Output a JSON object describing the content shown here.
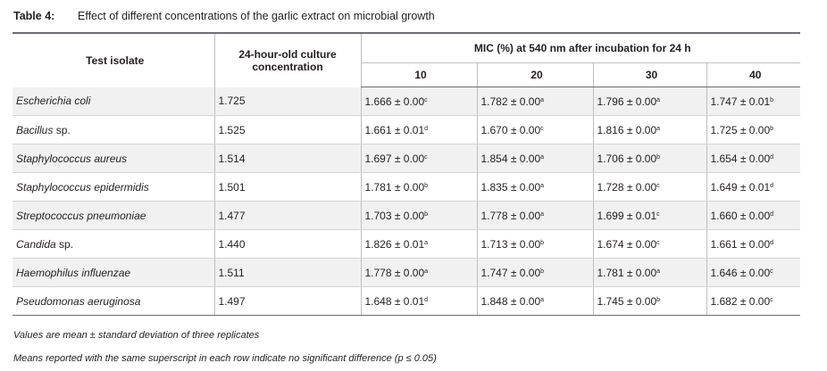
{
  "caption": {
    "label": "Table 4:",
    "text": "Effect of different concentrations of the garlic extract on microbial growth"
  },
  "headers": {
    "isolate": "Test isolate",
    "culture": "24-hour-old culture concentration",
    "mic_group": "MIC (%) at 540 nm after incubation for 24 h",
    "mic_cols": [
      "10",
      "20",
      "30",
      "40"
    ]
  },
  "rows": [
    {
      "genus": "Escherichia coli",
      "suffix": "",
      "conc": "1.725",
      "vals": [
        "1.666 ± 0.00",
        "1.782 ± 0.00",
        "1.796 ± 0.00",
        "1.747 ± 0.01"
      ],
      "sups": [
        "c",
        "a",
        "a",
        "b"
      ]
    },
    {
      "genus": "Bacillus",
      "suffix": " sp.",
      "conc": "1.525",
      "vals": [
        "1.661 ± 0.01",
        "1.670 ± 0.00",
        "1.816 ± 0.00",
        "1.725 ± 0.00"
      ],
      "sups": [
        "d",
        "c",
        "a",
        "b"
      ]
    },
    {
      "genus": "Staphylococcus aureus",
      "suffix": "",
      "conc": "1.514",
      "vals": [
        "1.697 ± 0.00",
        "1.854 ± 0.00",
        "1.706 ± 0.00",
        "1.654 ± 0.00"
      ],
      "sups": [
        "c",
        "a",
        "b",
        "d"
      ]
    },
    {
      "genus": "Staphylococcus epidermidis",
      "suffix": "",
      "conc": "1.501",
      "vals": [
        "1.781 ± 0.00",
        "1.835 ± 0.00",
        "1.728 ± 0.00",
        "1.649 ± 0.01"
      ],
      "sups": [
        "b",
        "a",
        "c",
        "d"
      ]
    },
    {
      "genus": "Streptococcus pneumoniae",
      "suffix": "",
      "conc": "1.477",
      "vals": [
        "1.703 ± 0.00",
        "1.778 ± 0.00",
        "1.699 ± 0.01",
        "1.660 ± 0.00"
      ],
      "sups": [
        "b",
        "a",
        "c",
        "d"
      ]
    },
    {
      "genus": "Candida",
      "suffix": " sp.",
      "conc": "1.440",
      "vals": [
        "1.826 ± 0.01",
        "1.713 ± 0.00",
        "1.674 ± 0.00",
        "1.661 ± 0.00"
      ],
      "sups": [
        "a",
        "b",
        "c",
        "d"
      ]
    },
    {
      "genus": "Haemophilus influenzae",
      "suffix": "",
      "conc": "1.511",
      "vals": [
        "1.778 ± 0.00",
        "1.747 ± 0.00",
        "1.781 ± 0.00",
        "1.646 ± 0.00"
      ],
      "sups": [
        "a",
        "b",
        "a",
        "c"
      ]
    },
    {
      "genus": "Pseudomonas aeruginosa",
      "suffix": "",
      "conc": "1.497",
      "vals": [
        "1.648 ± 0.01",
        "1.848 ± 0.00",
        "1.745 ± 0.00",
        "1.682 ± 0.00"
      ],
      "sups": [
        "d",
        "a",
        "b",
        "c"
      ]
    }
  ],
  "notes": [
    "Values are mean ± standard deviation of three replicates",
    "Means reported with the same superscript in each row indicate no significant difference (p ≤ 0.05)"
  ]
}
